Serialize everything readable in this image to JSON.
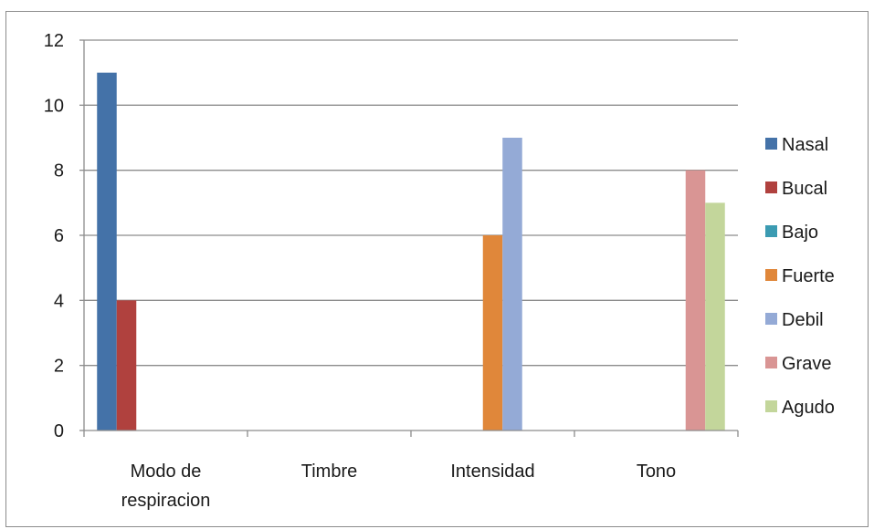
{
  "chart_data": {
    "type": "bar",
    "title": "",
    "xlabel": "",
    "ylabel": "",
    "ylim": [
      0,
      12
    ],
    "yticks": [
      0,
      2,
      4,
      6,
      8,
      10,
      12
    ],
    "grid": true,
    "legend_position": "right",
    "categories": [
      "Modo de respiracion",
      "Timbre",
      "Intensidad",
      "Tono"
    ],
    "category_lines": [
      [
        "Modo de",
        "respiracion"
      ],
      [
        "Timbre"
      ],
      [
        "Intensidad"
      ],
      [
        "Tono"
      ]
    ],
    "series": [
      {
        "name": "Nasal",
        "color": "#4472a8",
        "values": [
          11,
          0,
          0,
          0
        ]
      },
      {
        "name": "Bucal",
        "color": "#b0413e",
        "values": [
          4,
          0,
          0,
          0
        ]
      },
      {
        "name": "Bajo",
        "color": "#3b9bb2",
        "values": [
          0,
          0,
          0,
          0
        ]
      },
      {
        "name": "Fuerte",
        "color": "#e0873a",
        "values": [
          0,
          0,
          6,
          0
        ]
      },
      {
        "name": "Debil",
        "color": "#94aad6",
        "values": [
          0,
          0,
          9,
          0
        ]
      },
      {
        "name": "Grave",
        "color": "#d99594",
        "values": [
          0,
          0,
          0,
          8
        ]
      },
      {
        "name": "Agudo",
        "color": "#c3d69b",
        "values": [
          0,
          0,
          0,
          7
        ]
      }
    ]
  }
}
